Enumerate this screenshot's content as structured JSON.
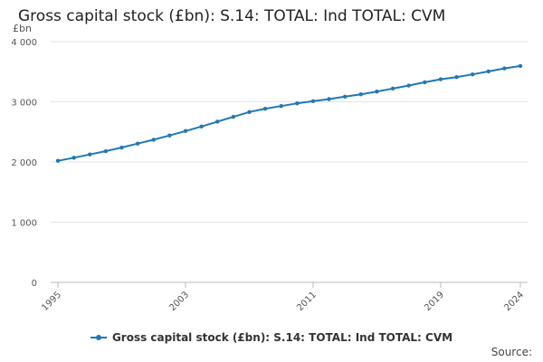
{
  "chart_data": {
    "type": "line",
    "title": "Gross capital stock (£bn): S.14: TOTAL: Ind TOTAL: CVM",
    "unit_label": "£bn",
    "xlabel": "",
    "ylabel": "",
    "x_tick_labels": [
      "1995",
      "2003",
      "2011",
      "2019",
      "2024"
    ],
    "x_ticks": [
      1995,
      2003,
      2011,
      2019,
      2024
    ],
    "y_tick_labels": [
      "0",
      "1 000",
      "2 000",
      "3 000",
      "4 000"
    ],
    "y_ticks": [
      0,
      1000,
      2000,
      3000,
      4000
    ],
    "ylim": [
      0,
      4000
    ],
    "xlim": [
      1995,
      2024
    ],
    "grid": "horizontal",
    "legend_position": "bottom",
    "line_color": "#1f78b4",
    "series": [
      {
        "name": "Gross capital stock (£bn): S.14: TOTAL: Ind TOTAL: CVM",
        "x": [
          1995,
          1996,
          1997,
          1998,
          1999,
          2000,
          2001,
          2002,
          2003,
          2004,
          2005,
          2006,
          2007,
          2008,
          2009,
          2010,
          2011,
          2012,
          2013,
          2014,
          2015,
          2016,
          2017,
          2018,
          2019,
          2020,
          2021,
          2022,
          2023,
          2024
        ],
        "values": [
          2020,
          2070,
          2125,
          2180,
          2240,
          2305,
          2370,
          2440,
          2515,
          2590,
          2670,
          2750,
          2830,
          2885,
          2930,
          2975,
          3010,
          3045,
          3085,
          3125,
          3170,
          3220,
          3270,
          3325,
          3375,
          3410,
          3455,
          3505,
          3555,
          3595
        ]
      }
    ]
  },
  "legend": {
    "label": "Gross capital stock (£bn): S.14: TOTAL: Ind TOTAL: CVM"
  },
  "source": {
    "label": "Source:"
  }
}
